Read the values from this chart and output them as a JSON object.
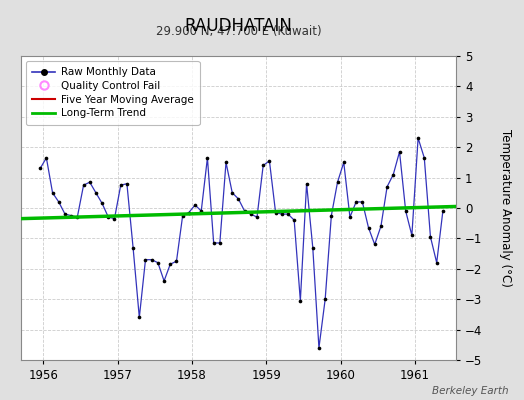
{
  "title": "RAUDHATAIN",
  "subtitle": "29.900 N, 47.700 E (Kuwait)",
  "ylabel": "Temperature Anomaly (°C)",
  "watermark": "Berkeley Earth",
  "ylim": [
    -5,
    5
  ],
  "xlim": [
    1955.7,
    1961.55
  ],
  "xticks": [
    1956,
    1957,
    1958,
    1959,
    1960,
    1961
  ],
  "yticks": [
    -5,
    -4,
    -3,
    -2,
    -1,
    0,
    1,
    2,
    3,
    4,
    5
  ],
  "fig_bg_color": "#e0e0e0",
  "plot_bg_color": "#ffffff",
  "raw_line_color": "#3333bb",
  "raw_dot_color": "#000000",
  "trend_color": "#00bb00",
  "ma_color": "#cc0000",
  "qc_color": "#ff88ff",
  "raw_data_x": [
    1955.958,
    1956.042,
    1956.125,
    1956.208,
    1956.292,
    1956.375,
    1956.458,
    1956.542,
    1956.625,
    1956.708,
    1956.792,
    1956.875,
    1956.958,
    1957.042,
    1957.125,
    1957.208,
    1957.292,
    1957.375,
    1957.458,
    1957.542,
    1957.625,
    1957.708,
    1957.792,
    1957.875,
    1957.958,
    1958.042,
    1958.125,
    1958.208,
    1958.292,
    1958.375,
    1958.458,
    1958.542,
    1958.625,
    1958.708,
    1958.792,
    1958.875,
    1958.958,
    1959.042,
    1959.125,
    1959.208,
    1959.292,
    1959.375,
    1959.458,
    1959.542,
    1959.625,
    1959.708,
    1959.792,
    1959.875,
    1959.958,
    1960.042,
    1960.125,
    1960.208,
    1960.292,
    1960.375,
    1960.458,
    1960.542,
    1960.625,
    1960.708,
    1960.792,
    1960.875,
    1960.958,
    1961.042,
    1961.125,
    1961.208,
    1961.292,
    1961.375
  ],
  "raw_data_y": [
    1.3,
    1.65,
    0.5,
    0.2,
    -0.2,
    -0.25,
    -0.3,
    0.75,
    0.85,
    0.5,
    0.15,
    -0.3,
    -0.35,
    0.75,
    0.8,
    -1.3,
    -3.6,
    -1.7,
    -1.7,
    -1.8,
    -2.4,
    -1.85,
    -1.75,
    -0.25,
    -0.15,
    0.1,
    -0.1,
    1.65,
    -1.15,
    -1.15,
    1.5,
    0.5,
    0.3,
    -0.1,
    -0.2,
    -0.3,
    1.4,
    1.55,
    -0.15,
    -0.2,
    -0.2,
    -0.4,
    -3.05,
    0.8,
    -1.3,
    -4.6,
    -3.0,
    -0.25,
    0.85,
    1.5,
    -0.3,
    0.2,
    0.2,
    -0.65,
    -1.2,
    -0.6,
    0.7,
    1.1,
    1.85,
    -0.1,
    -0.9,
    2.3,
    1.65,
    -0.95,
    -1.8,
    -0.1
  ],
  "trend_x": [
    1955.7,
    1961.55
  ],
  "trend_y": [
    -0.35,
    0.05
  ]
}
